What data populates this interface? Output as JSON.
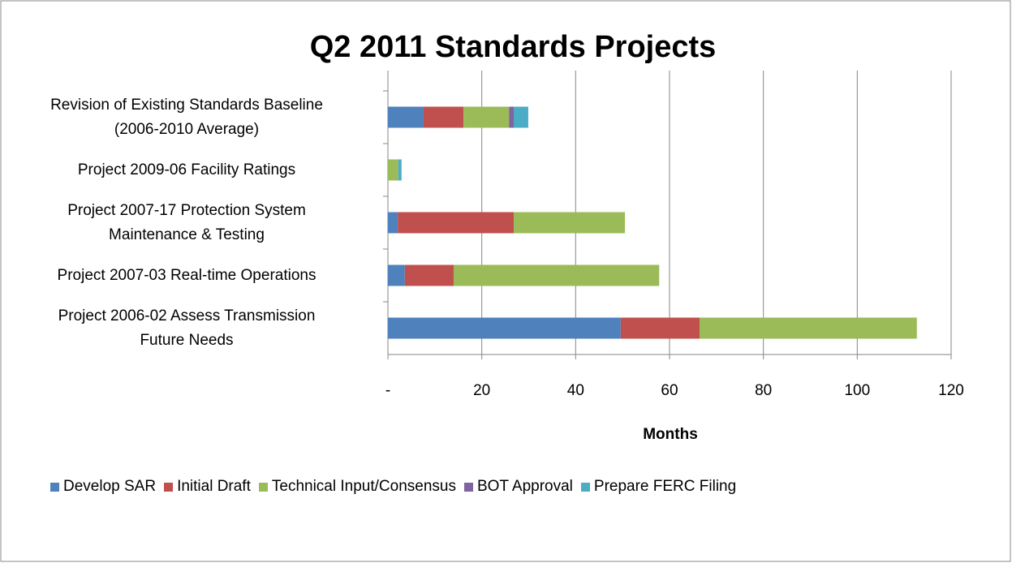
{
  "chart_data": {
    "type": "stacked_barh",
    "title": "Q2 2011 Standards Projects",
    "x_label": "Months",
    "categories": [
      "Revision of Existing Standards Baseline\n(2006-2010 Average)",
      "Project 2009-06 Facility Ratings",
      "Project 2007-17 Protection System\nMaintenance & Testing",
      "Project 2007-03 Real-time Operations",
      "Project 2006-02 Assess Transmission\nFuture Needs"
    ],
    "series": [
      {
        "name": "Develop SAR",
        "color": "#4f81bd",
        "values": [
          7.6,
          0,
          2.1,
          3.6,
          49.6
        ]
      },
      {
        "name": "Initial Draft",
        "color": "#c0504d",
        "values": [
          8.5,
          0,
          24.7,
          10.4,
          16.8
        ]
      },
      {
        "name": "Technical Input/Consensus",
        "color": "#9bbb59",
        "values": [
          9.7,
          2.2,
          23.7,
          43.8,
          46.3
        ]
      },
      {
        "name": "BOT Approval",
        "color": "#8064a2",
        "values": [
          1.0,
          0,
          0,
          0,
          0
        ]
      },
      {
        "name": "Prepare FERC Filing",
        "color": "#4bacc6",
        "values": [
          3.1,
          0.7,
          0,
          0,
          0
        ]
      }
    ],
    "xlim": [
      0,
      120
    ],
    "xticks": [
      {
        "value": 0,
        "label": "-"
      },
      20,
      40,
      60,
      80,
      100,
      120
    ],
    "grid": true,
    "legend": "bottom"
  }
}
